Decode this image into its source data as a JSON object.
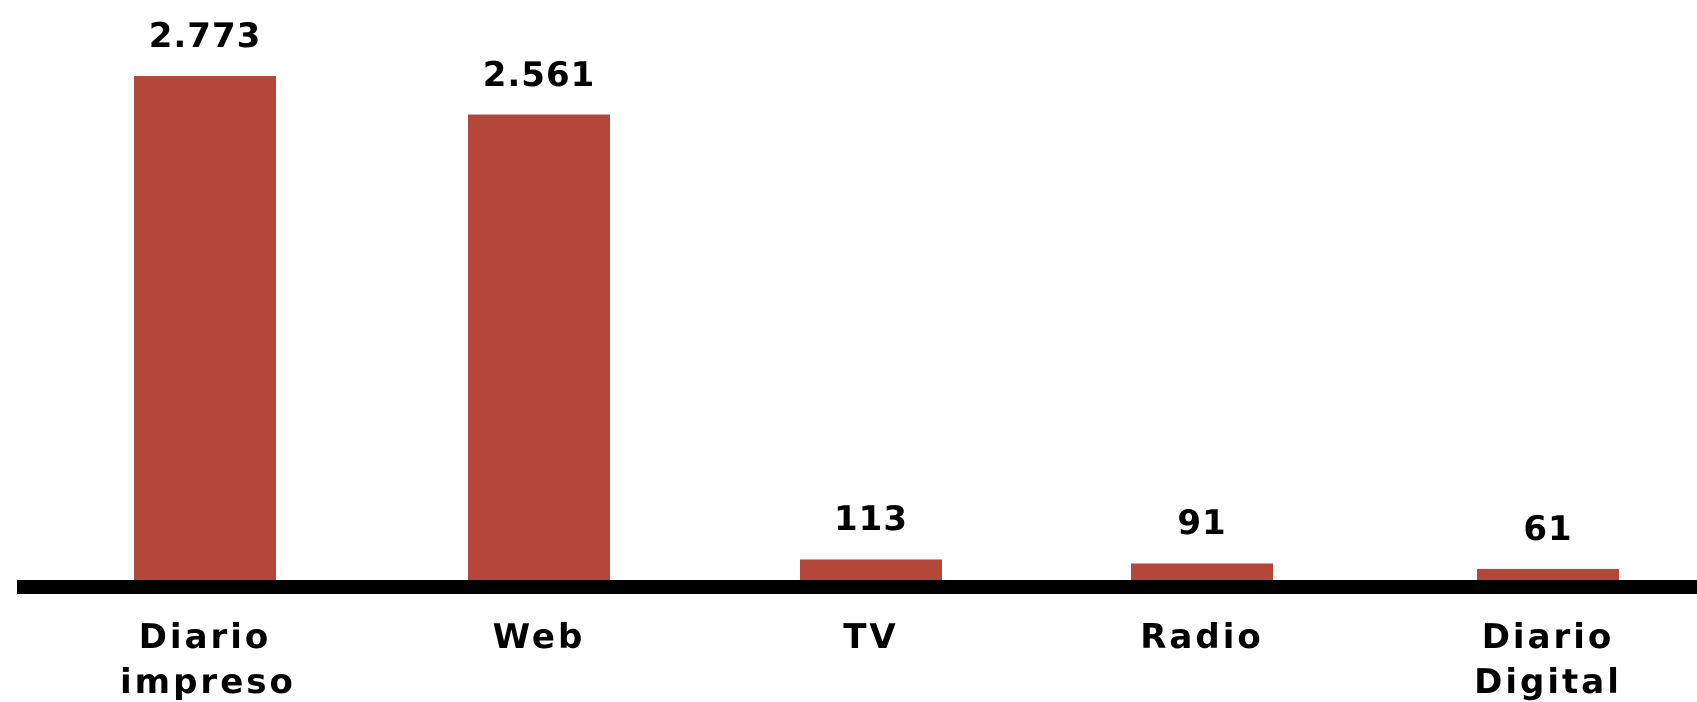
{
  "chart_data": {
    "type": "bar",
    "categories": [
      "Diario impreso",
      "Web",
      "TV",
      "Radio",
      "Diario Digital"
    ],
    "values": [
      2773,
      2561,
      113,
      91,
      61
    ],
    "value_labels": [
      "2.773",
      "2.561",
      "113",
      "91",
      "61"
    ],
    "color": "#b34739"
  }
}
